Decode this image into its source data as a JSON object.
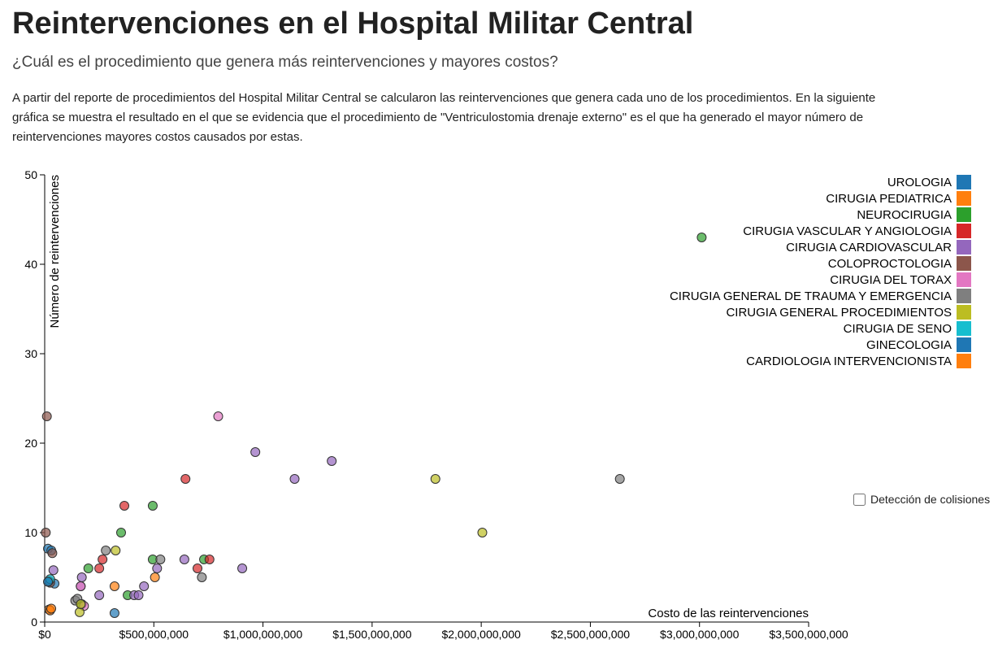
{
  "header": {
    "title": "Reintervenciones en el Hospital Militar Central",
    "subtitle": "¿Cuál es el procedimiento que genera más reintervenciones y mayores costos?",
    "description": "A partir del reporte de procedimientos del Hospital Militar Central se calcularon las reintervenciones que genera cada uno de los procedimientos. En la siguiente gráfica se muestra el resultado en el que se evidencia que el procedimiento de \"Ventriculostomia drenaje externo\" es el que ha generado el mayor número de reintervenciones mayores costos causados por estas."
  },
  "controls": {
    "collision_label": "Detección de colisiones",
    "collision_checked": false
  },
  "chart_data": {
    "type": "scatter",
    "xlabel": "Costo de las reintervenciones",
    "ylabel": "Número de reintervenciones",
    "xlim": [
      0,
      3500000000
    ],
    "ylim": [
      0,
      50
    ],
    "x_ticks": [
      0,
      500000000,
      1000000000,
      1500000000,
      2000000000,
      2500000000,
      3000000000,
      3500000000
    ],
    "x_tick_labels": [
      "$0",
      "$500,000,000",
      "$1,000,000,000",
      "$1,500,000,000",
      "$2,000,000,000",
      "$2,500,000,000",
      "$3,000,000,000",
      "$3,500,000,000"
    ],
    "y_ticks": [
      0,
      10,
      20,
      30,
      40,
      50
    ],
    "y_tick_labels": [
      "0",
      "10",
      "20",
      "30",
      "40",
      "50"
    ],
    "legend_position": "top-right",
    "series": [
      {
        "name": "UROLOGIA",
        "color": "#1f77b4",
        "points": [
          [
            15000000,
            8.2
          ],
          [
            30000000,
            8.0
          ],
          [
            45000000,
            4.3
          ],
          [
            320000000,
            1
          ]
        ]
      },
      {
        "name": "CIRUGIA PEDIATRICA",
        "color": "#ff7f0e",
        "points": [
          [
            320000000,
            4
          ],
          [
            505000000,
            5
          ],
          [
            20000000,
            1.4
          ]
        ]
      },
      {
        "name": "NEUROCIRUGIA",
        "color": "#2ca02c",
        "points": [
          [
            3010000000,
            43
          ],
          [
            495000000,
            13
          ],
          [
            350000000,
            10
          ],
          [
            495000000,
            7
          ],
          [
            730000000,
            7
          ],
          [
            200000000,
            6
          ],
          [
            380000000,
            3
          ],
          [
            170000000,
            2
          ]
        ]
      },
      {
        "name": "CIRUGIA VASCULAR Y ANGIOLOGIA",
        "color": "#d62728",
        "points": [
          [
            645000000,
            16
          ],
          [
            365000000,
            13
          ],
          [
            755000000,
            7
          ],
          [
            265000000,
            7
          ],
          [
            700000000,
            6
          ],
          [
            250000000,
            6
          ]
        ]
      },
      {
        "name": "CIRUGIA CARDIOVASCULAR",
        "color": "#9467bd",
        "points": [
          [
            965000000,
            19
          ],
          [
            1315000000,
            18
          ],
          [
            1145000000,
            16
          ],
          [
            640000000,
            7
          ],
          [
            905000000,
            6
          ],
          [
            515000000,
            6
          ],
          [
            40000000,
            5.8
          ],
          [
            170000000,
            5
          ],
          [
            165000000,
            4
          ],
          [
            455000000,
            4
          ],
          [
            250000000,
            3
          ],
          [
            410000000,
            3
          ],
          [
            430000000,
            3
          ]
        ]
      },
      {
        "name": "COLOPROCTOLOGIA",
        "color": "#8c564b",
        "points": [
          [
            10000000,
            23
          ],
          [
            5000000,
            10
          ],
          [
            35000000,
            7.7
          ],
          [
            25000000,
            4.4
          ]
        ]
      },
      {
        "name": "CIRUGIA DEL TORAX",
        "color": "#e377c2",
        "points": [
          [
            795000000,
            23
          ],
          [
            165000000,
            4
          ],
          [
            180000000,
            1.8
          ]
        ]
      },
      {
        "name": "CIRUGIA GENERAL DE TRAUMA Y EMERGENCIA",
        "color": "#7f7f7f",
        "points": [
          [
            2635000000,
            16
          ],
          [
            280000000,
            8
          ],
          [
            530000000,
            7
          ],
          [
            720000000,
            5
          ],
          [
            140000000,
            2.4
          ],
          [
            150000000,
            2.6
          ]
        ]
      },
      {
        "name": "CIRUGIA GENERAL PROCEDIMIENTOS",
        "color": "#bcbd22",
        "points": [
          [
            1790000000,
            16
          ],
          [
            2005000000,
            10
          ],
          [
            325000000,
            8
          ],
          [
            160000000,
            1.1
          ],
          [
            165000000,
            2.0
          ]
        ]
      },
      {
        "name": "CIRUGIA DE SENO",
        "color": "#17becf",
        "points": [
          [
            20000000,
            4.6
          ],
          [
            25000000,
            4.8
          ]
        ]
      },
      {
        "name": "GINECOLOGIA",
        "color": "#1f77b4",
        "points": [
          [
            15000000,
            4.5
          ]
        ]
      },
      {
        "name": "CARDIOLOGIA INTERVENCIONISTA",
        "color": "#ff7f0e",
        "points": [
          [
            25000000,
            1.3
          ],
          [
            30000000,
            1.5
          ]
        ]
      }
    ]
  }
}
